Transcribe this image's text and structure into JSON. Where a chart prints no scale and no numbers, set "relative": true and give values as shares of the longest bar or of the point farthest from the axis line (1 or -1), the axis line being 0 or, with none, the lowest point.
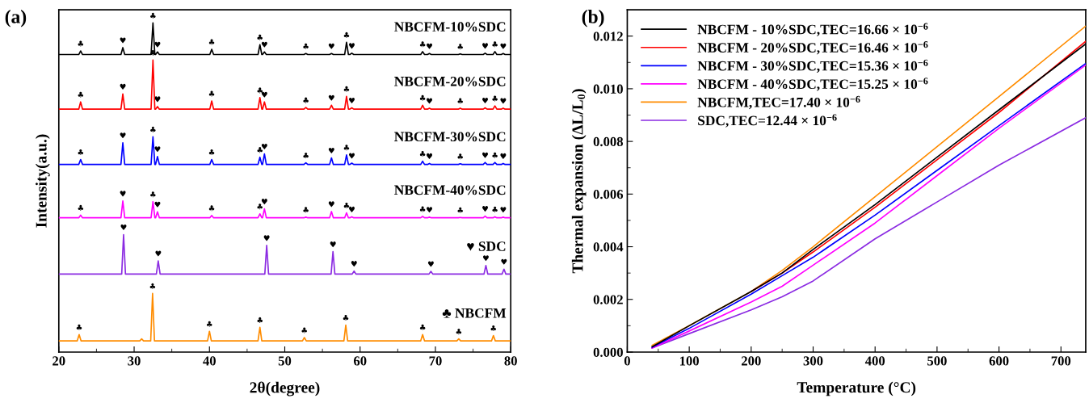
{
  "chart_data": [
    {
      "type": "line",
      "title": "(a)",
      "xlabel": "2θ(degree)",
      "ylabel": "Intensity(a.u.)",
      "relative": true,
      "tick_labels": "x",
      "xlim": [
        20,
        80
      ],
      "xticks": [
        20,
        30,
        40,
        50,
        60,
        70,
        80
      ],
      "x": [
        20,
        22.65,
        22.9,
        23.15,
        28.25,
        28.5,
        28.75,
        32.25,
        32.5,
        32.75,
        32.85,
        33.1,
        33.35,
        40.05,
        40.3,
        40.55,
        46.45,
        46.7,
        46.95,
        47.05,
        47.3,
        47.55,
        52.55,
        52.8,
        53.05,
        55.95,
        56.2,
        56.45,
        57.95,
        58.2,
        58.45,
        58.65,
        58.9,
        59.15,
        68.05,
        68.3,
        68.55,
        68.95,
        69.2,
        69.45,
        73.05,
        73.3,
        73.55,
        76.35,
        76.6,
        76.85,
        77.65,
        77.9,
        78.15,
        78.75,
        79.0,
        79.25,
        80
      ],
      "series": [
        {
          "name": "NBCFM-10%SDC",
          "color": "#000000",
          "values": [
            0.904,
            0.904,
            0.915,
            0.904,
            0.904,
            0.925,
            0.904,
            0.904,
            1.0,
            0.904,
            0.904,
            0.912,
            0.904,
            0.904,
            0.92,
            0.904,
            0.904,
            0.934,
            0.904,
            0.904,
            0.912,
            0.904,
            0.904,
            0.907,
            0.904,
            0.904,
            0.907,
            0.904,
            0.904,
            0.941,
            0.904,
            0.904,
            0.908,
            0.904,
            0.904,
            0.913,
            0.904,
            0.904,
            0.907,
            0.904,
            0.904,
            0.906,
            0.904,
            0.904,
            0.908,
            0.904,
            0.904,
            0.913,
            0.904,
            0.904,
            0.907,
            0.904,
            0.904
          ]
        },
        {
          "name": "NBCFM-20%SDC",
          "color": "#ff0000",
          "values": [
            0.738,
            0.738,
            0.76,
            0.738,
            0.738,
            0.784,
            0.738,
            0.738,
            0.887,
            0.738,
            0.738,
            0.746,
            0.738,
            0.738,
            0.763,
            0.738,
            0.738,
            0.773,
            0.738,
            0.738,
            0.76,
            0.738,
            0.738,
            0.743,
            0.738,
            0.738,
            0.75,
            0.738,
            0.738,
            0.777,
            0.738,
            0.738,
            0.742,
            0.738,
            0.738,
            0.75,
            0.738,
            0.738,
            0.741,
            0.738,
            0.738,
            0.741,
            0.738,
            0.738,
            0.742,
            0.738,
            0.738,
            0.748,
            0.738,
            0.738,
            0.741,
            0.738,
            0.738
          ]
        },
        {
          "name": "NBCFM-30%SDC",
          "color": "#0000ff",
          "values": [
            0.57,
            0.57,
            0.585,
            0.57,
            0.57,
            0.636,
            0.57,
            0.57,
            0.654,
            0.57,
            0.57,
            0.594,
            0.57,
            0.57,
            0.585,
            0.57,
            0.57,
            0.592,
            0.57,
            0.57,
            0.602,
            0.57,
            0.57,
            0.575,
            0.57,
            0.57,
            0.59,
            0.57,
            0.57,
            0.599,
            0.57,
            0.57,
            0.574,
            0.57,
            0.57,
            0.58,
            0.57,
            0.57,
            0.573,
            0.57,
            0.57,
            0.572,
            0.57,
            0.57,
            0.576,
            0.57,
            0.57,
            0.576,
            0.57,
            0.57,
            0.573,
            0.57,
            0.57
          ]
        },
        {
          "name": "NBCFM-40%SDC",
          "color": "#ff00ff",
          "values": [
            0.408,
            0.408,
            0.416,
            0.408,
            0.408,
            0.459,
            0.408,
            0.408,
            0.457,
            0.408,
            0.408,
            0.426,
            0.408,
            0.408,
            0.415,
            0.408,
            0.408,
            0.42,
            0.408,
            0.408,
            0.435,
            0.408,
            0.408,
            0.41,
            0.408,
            0.408,
            0.427,
            0.408,
            0.408,
            0.423,
            0.408,
            0.408,
            0.411,
            0.408,
            0.408,
            0.412,
            0.408,
            0.408,
            0.41,
            0.408,
            0.408,
            0.409,
            0.408,
            0.408,
            0.413,
            0.408,
            0.408,
            0.411,
            0.408,
            0.408,
            0.41,
            0.408,
            0.408
          ]
        },
        {
          "name": "♥ SDC",
          "color": "#8b2be2",
          "x": [
            20,
            28.35,
            28.6,
            28.85,
            32.95,
            33.2,
            33.45,
            47.35,
            47.6,
            47.85,
            56.15,
            56.4,
            56.65,
            58.95,
            59.2,
            59.45,
            69.15,
            69.4,
            69.65,
            76.45,
            76.7,
            76.95,
            78.85,
            79.1,
            79.35,
            80
          ],
          "values": [
            0.237,
            0.237,
            0.357,
            0.237,
            0.237,
            0.277,
            0.237,
            0.237,
            0.324,
            0.237,
            0.237,
            0.305,
            0.237,
            0.237,
            0.246,
            0.237,
            0.237,
            0.245,
            0.237,
            0.237,
            0.263,
            0.237,
            0.237,
            0.252,
            0.237,
            0.237
          ]
        },
        {
          "name": "♣ NBCFM",
          "color": "#ff8c00",
          "x": [
            20,
            22.45,
            22.7,
            22.95,
            30.75,
            31.0,
            31.25,
            32.2,
            32.45,
            32.7,
            39.75,
            40.0,
            40.25,
            46.45,
            46.7,
            46.95,
            52.35,
            52.6,
            52.85,
            57.85,
            58.1,
            58.35,
            68.05,
            68.3,
            68.55,
            72.85,
            73.1,
            73.35,
            77.45,
            77.7,
            77.95,
            80
          ],
          "values": [
            0.034,
            0.034,
            0.053,
            0.034,
            0.034,
            0.04,
            0.034,
            0.034,
            0.178,
            0.034,
            0.034,
            0.063,
            0.034,
            0.034,
            0.075,
            0.034,
            0.034,
            0.044,
            0.034,
            0.034,
            0.082,
            0.034,
            0.034,
            0.053,
            0.034,
            0.034,
            0.04,
            0.034,
            0.034,
            0.05,
            0.034,
            0.034
          ]
        }
      ],
      "annotations": [
        {
          "text": "♣",
          "x": 22.9,
          "y": 0.915
        },
        {
          "text": "♥",
          "x": 28.5,
          "y": 0.925
        },
        {
          "text": "♣",
          "x": 32.5,
          "y": 1.0
        },
        {
          "text": "♥",
          "x": 33.1,
          "y": 0.912
        },
        {
          "text": "♣",
          "x": 40.3,
          "y": 0.92
        },
        {
          "text": "♣",
          "x": 46.7,
          "y": 0.934
        },
        {
          "text": "♥",
          "x": 47.3,
          "y": 0.912
        },
        {
          "text": "♣",
          "x": 52.8,
          "y": 0.907
        },
        {
          "text": "♥",
          "x": 56.2,
          "y": 0.907
        },
        {
          "text": "♣",
          "x": 58.2,
          "y": 0.941
        },
        {
          "text": "♥",
          "x": 58.9,
          "y": 0.908
        },
        {
          "text": "♣",
          "x": 68.3,
          "y": 0.913
        },
        {
          "text": "♥",
          "x": 69.2,
          "y": 0.907
        },
        {
          "text": "♣",
          "x": 73.3,
          "y": 0.906
        },
        {
          "text": "♥",
          "x": 76.6,
          "y": 0.908
        },
        {
          "text": "♣",
          "x": 77.9,
          "y": 0.913
        },
        {
          "text": "♥",
          "x": 79.0,
          "y": 0.907
        },
        {
          "text": "♣",
          "x": 22.9,
          "y": 0.76
        },
        {
          "text": "♥",
          "x": 28.5,
          "y": 0.784
        },
        {
          "text": "♣",
          "x": 32.5,
          "y": 0.887
        },
        {
          "text": "♥",
          "x": 33.1,
          "y": 0.746
        },
        {
          "text": "♣",
          "x": 40.3,
          "y": 0.763
        },
        {
          "text": "♣",
          "x": 46.7,
          "y": 0.773
        },
        {
          "text": "♥",
          "x": 47.3,
          "y": 0.76
        },
        {
          "text": "♣",
          "x": 52.8,
          "y": 0.743
        },
        {
          "text": "♥",
          "x": 56.2,
          "y": 0.75
        },
        {
          "text": "♣",
          "x": 58.2,
          "y": 0.777
        },
        {
          "text": "♥",
          "x": 58.9,
          "y": 0.742
        },
        {
          "text": "♣",
          "x": 68.3,
          "y": 0.75
        },
        {
          "text": "♥",
          "x": 69.2,
          "y": 0.741
        },
        {
          "text": "♣",
          "x": 73.3,
          "y": 0.741
        },
        {
          "text": "♥",
          "x": 76.6,
          "y": 0.742
        },
        {
          "text": "♣",
          "x": 77.9,
          "y": 0.748
        },
        {
          "text": "♥",
          "x": 79.0,
          "y": 0.741
        },
        {
          "text": "♣",
          "x": 22.9,
          "y": 0.585
        },
        {
          "text": "♥",
          "x": 28.5,
          "y": 0.636
        },
        {
          "text": "♣",
          "x": 32.5,
          "y": 0.654
        },
        {
          "text": "♥",
          "x": 33.1,
          "y": 0.594
        },
        {
          "text": "♣",
          "x": 40.3,
          "y": 0.585
        },
        {
          "text": "♣",
          "x": 46.7,
          "y": 0.592
        },
        {
          "text": "♥",
          "x": 47.3,
          "y": 0.602
        },
        {
          "text": "♣",
          "x": 52.8,
          "y": 0.575
        },
        {
          "text": "♥",
          "x": 56.2,
          "y": 0.59
        },
        {
          "text": "♣",
          "x": 58.2,
          "y": 0.599
        },
        {
          "text": "♥",
          "x": 58.9,
          "y": 0.574
        },
        {
          "text": "♣",
          "x": 68.3,
          "y": 0.58
        },
        {
          "text": "♥",
          "x": 69.2,
          "y": 0.573
        },
        {
          "text": "♣",
          "x": 73.3,
          "y": 0.572
        },
        {
          "text": "♥",
          "x": 76.6,
          "y": 0.576
        },
        {
          "text": "♣",
          "x": 77.9,
          "y": 0.576
        },
        {
          "text": "♥",
          "x": 79.0,
          "y": 0.573
        },
        {
          "text": "♣",
          "x": 22.9,
          "y": 0.416
        },
        {
          "text": "♥",
          "x": 28.5,
          "y": 0.459
        },
        {
          "text": "♣",
          "x": 32.5,
          "y": 0.457
        },
        {
          "text": "♥",
          "x": 33.1,
          "y": 0.426
        },
        {
          "text": "♣",
          "x": 40.3,
          "y": 0.415
        },
        {
          "text": "♣",
          "x": 46.7,
          "y": 0.42
        },
        {
          "text": "♥",
          "x": 47.3,
          "y": 0.435
        },
        {
          "text": "♣",
          "x": 52.8,
          "y": 0.41
        },
        {
          "text": "♥",
          "x": 56.2,
          "y": 0.427
        },
        {
          "text": "♣",
          "x": 58.2,
          "y": 0.423
        },
        {
          "text": "♥",
          "x": 58.9,
          "y": 0.411
        },
        {
          "text": "♣",
          "x": 68.3,
          "y": 0.412
        },
        {
          "text": "♥",
          "x": 69.2,
          "y": 0.41
        },
        {
          "text": "♣",
          "x": 73.3,
          "y": 0.409
        },
        {
          "text": "♥",
          "x": 76.6,
          "y": 0.413
        },
        {
          "text": "♣",
          "x": 77.9,
          "y": 0.411
        },
        {
          "text": "♥",
          "x": 79.0,
          "y": 0.41
        },
        {
          "text": "♥",
          "x": 28.6,
          "y": 0.357
        },
        {
          "text": "♥",
          "x": 33.2,
          "y": 0.277
        },
        {
          "text": "♥",
          "x": 47.6,
          "y": 0.324
        },
        {
          "text": "♥",
          "x": 56.4,
          "y": 0.305
        },
        {
          "text": "♥",
          "x": 59.2,
          "y": 0.246
        },
        {
          "text": "♥",
          "x": 69.4,
          "y": 0.245
        },
        {
          "text": "♥",
          "x": 76.7,
          "y": 0.263
        },
        {
          "text": "♥",
          "x": 79.1,
          "y": 0.252
        },
        {
          "text": "♣",
          "x": 22.7,
          "y": 0.053
        },
        {
          "text": "♣",
          "x": 32.45,
          "y": 0.178
        },
        {
          "text": "♣",
          "x": 40.0,
          "y": 0.063
        },
        {
          "text": "♣",
          "x": 46.7,
          "y": 0.075
        },
        {
          "text": "♣",
          "x": 52.6,
          "y": 0.044
        },
        {
          "text": "♣",
          "x": 58.1,
          "y": 0.082
        },
        {
          "text": "♣",
          "x": 68.3,
          "y": 0.053
        },
        {
          "text": "♣",
          "x": 73.1,
          "y": 0.04
        },
        {
          "text": "♣",
          "x": 77.7,
          "y": 0.05
        }
      ]
    },
    {
      "type": "line",
      "title": "(b)",
      "xlabel": "Temperature (°C)",
      "ylabel": "Thermal expansion (ΔL/L$_{0}$)",
      "legend": "top left",
      "xlim": [
        0,
        740
      ],
      "xticks": [
        0,
        100,
        200,
        300,
        400,
        500,
        600,
        700
      ],
      "ylim": [
        0,
        0.013
      ],
      "yticks": [
        {
          "value": 0,
          "label": "0.000"
        },
        {
          "value": 0.002,
          "label": "0.002"
        },
        {
          "value": 0.004,
          "label": "0.004"
        },
        {
          "value": 0.006,
          "label": "0.006"
        },
        {
          "value": 0.008,
          "label": "0.008"
        },
        {
          "value": 0.01,
          "label": "0.010"
        },
        {
          "value": 0.012,
          "label": "0.012"
        }
      ],
      "x": [
        40,
        100,
        200,
        250,
        300,
        400,
        500,
        600,
        740
      ],
      "series": [
        {
          "name": "NBCFM - 10%SDC,TEC=16.66 × 10$^{−6}$",
          "color": "#000000",
          "values": [
            0.0002,
            0.001,
            0.0023,
            0.003,
            0.0039,
            0.0056,
            0.0074,
            0.0092,
            0.0117
          ]
        },
        {
          "name": "NBCFM - 20%SDC,TEC=16.46 × 10$^{−6}$",
          "color": "#ff0000",
          "values": [
            null,
            null,
            0.0023,
            0.003,
            0.0038,
            0.0055,
            0.0073,
            0.0091,
            0.0118
          ]
        },
        {
          "name": "NBCFM - 30%SDC,TEC=15.36 × 10$^{−6}$",
          "color": "#0000ff",
          "values": [
            0.00018,
            0.0009,
            0.0022,
            0.0029,
            0.0036,
            0.0052,
            0.0069,
            0.0086,
            0.01096
          ]
        },
        {
          "name": "NBCFM - 40%SDC,TEC=15.25 × 10$^{−6}$",
          "color": "#ff00ff",
          "values": [
            0.00015,
            0.0008,
            0.0019,
            0.0025,
            0.0033,
            0.0049,
            0.0067,
            0.0085,
            0.0109
          ]
        },
        {
          "name": "NBCFM,TEC=17.40 × 10$^{−6}$",
          "color": "#ff8c00",
          "values": [
            0.00025,
            0.001,
            0.0023,
            0.0031,
            0.004,
            0.0059,
            0.0078,
            0.0097,
            0.01238
          ]
        },
        {
          "name": "SDC,TEC=12.44 × 10$^{−6}$",
          "color": "#8b2be2",
          "values": [
            0.00015,
            0.0007,
            0.0016,
            0.0021,
            0.0027,
            0.0043,
            0.0057,
            0.0071,
            0.0089
          ]
        }
      ]
    }
  ]
}
